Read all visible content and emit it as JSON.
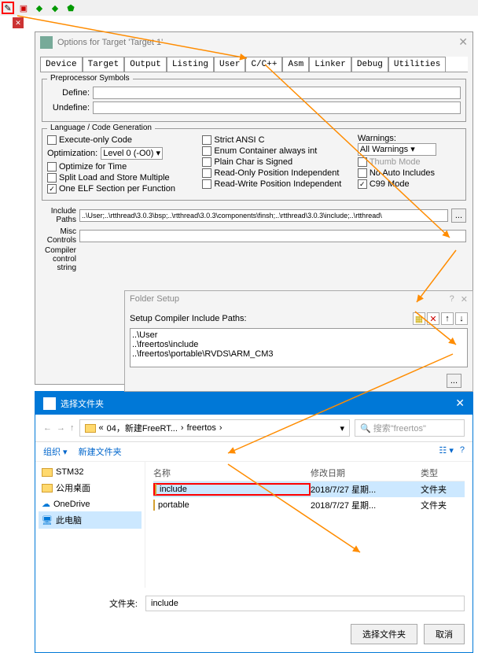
{
  "dialog": {
    "title": "Options for Target 'Target 1'",
    "tabs": [
      "Device",
      "Target",
      "Output",
      "Listing",
      "User",
      "C/C++",
      "Asm",
      "Linker",
      "Debug",
      "Utilities"
    ],
    "active_tab": 5,
    "preproc": {
      "title": "Preprocessor Symbols",
      "define_lbl": "Define:",
      "undefine_lbl": "Undefine:",
      "define": "",
      "undefine": ""
    },
    "lang": {
      "title": "Language / Code Generation",
      "exec_only": "Execute-only Code",
      "opt_lbl": "Optimization:",
      "opt_val": "Level 0 (-O0)",
      "opt_time": "Optimize for Time",
      "split": "Split Load and Store Multiple",
      "one_elf": "One ELF Section per Function",
      "strict_ansi": "Strict ANSI C",
      "enum_int": "Enum Container always int",
      "plain_char": "Plain Char is Signed",
      "ro_pi": "Read-Only Position Independent",
      "rw_pi": "Read-Write Position Independent",
      "warn_lbl": "Warnings:",
      "warn_val": "All Warnings",
      "thumb": "Thumb Mode",
      "no_auto": "No Auto Includes",
      "c99": "C99 Mode"
    },
    "include": {
      "lbl": "Include\nPaths",
      "val": "..\\User;..\\rtthread\\3.0.3\\bsp;..\\rtthread\\3.0.3\\components\\finsh;..\\rtthread\\3.0.3\\include;..\\rtthread\\",
      "btn": "..."
    },
    "misc": {
      "lbl": "Misc\nControls",
      "val": ""
    },
    "compiler": {
      "lbl": "Compiler\ncontrol\nstring"
    }
  },
  "folder_setup": {
    "title": "Folder Setup",
    "label": "Setup Compiler Include Paths:",
    "items": [
      "..\\User",
      "..\\freertos\\include",
      "..\\freertos\\portable\\RVDS\\ARM_CM3"
    ],
    "browse": "..."
  },
  "browse": {
    "title": "选择文件夹",
    "path": [
      "04，新建FreeRT...",
      "freertos"
    ],
    "search_ph": "搜索\"freertos\"",
    "org": "组织",
    "newf": "新建文件夹",
    "side": [
      {
        "label": "STM32",
        "type": "folder"
      },
      {
        "label": "公用桌面",
        "type": "folder"
      },
      {
        "label": "OneDrive",
        "type": "cloud"
      },
      {
        "label": "此电脑",
        "type": "pc"
      }
    ],
    "cols": {
      "name": "名称",
      "date": "修改日期",
      "type": "类型"
    },
    "rows": [
      {
        "name": "include",
        "date": "2018/7/27 星期...",
        "type": "文件夹",
        "sel": true
      },
      {
        "name": "portable",
        "date": "2018/7/27 星期...",
        "type": "文件夹",
        "sel": false
      }
    ],
    "fn_lbl": "文件夹:",
    "fn_val": "include",
    "ok": "选择文件夹",
    "cancel": "取消"
  }
}
